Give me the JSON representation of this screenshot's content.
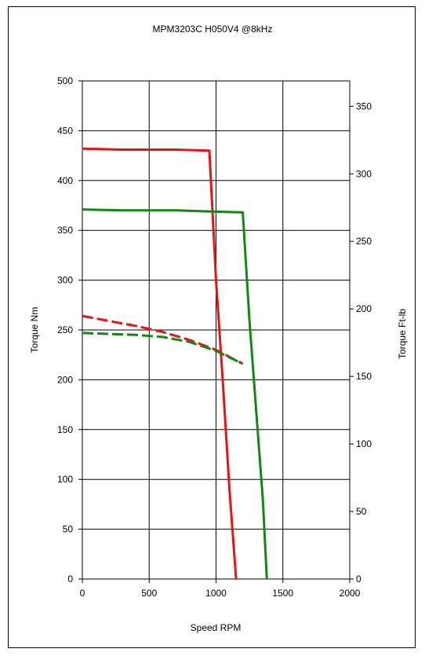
{
  "chart_data": {
    "type": "line",
    "title": "MPM3203C H050V4 @8kHz",
    "xlabel": "Speed RPM",
    "ylabel": "Torque Nm",
    "y2label": "Torque Ft-lb",
    "xlim": [
      0,
      2000
    ],
    "ylim": [
      0,
      500
    ],
    "y2lim": [
      0,
      368.8
    ],
    "x_ticks": [
      "0",
      "500",
      "1000",
      "1500",
      "2000"
    ],
    "y_ticks": [
      "0",
      "50",
      "100",
      "150",
      "200",
      "250",
      "300",
      "350",
      "400",
      "450",
      "500"
    ],
    "y2_ticks": [
      "0",
      "50",
      "100",
      "150",
      "200",
      "250",
      "300",
      "350"
    ],
    "grid": true,
    "series": [
      {
        "color": "#ee1111",
        "style": "solid",
        "x": [
          0,
          300,
          700,
          950,
          1000,
          1050,
          1100,
          1150
        ],
        "y": [
          432,
          431,
          431,
          430,
          300,
          200,
          90,
          0
        ]
      },
      {
        "color": "#118811",
        "style": "solid",
        "x": [
          0,
          300,
          700,
          1200,
          1250,
          1300,
          1350,
          1380
        ],
        "y": [
          371,
          370,
          370,
          368,
          260,
          170,
          80,
          0
        ]
      },
      {
        "color": "#ee1111",
        "style": "dashed",
        "x": [
          0,
          200,
          400,
          600,
          800,
          1000,
          1200
        ],
        "y": [
          264,
          259,
          254,
          248,
          240,
          230,
          216
        ]
      },
      {
        "color": "#118811",
        "style": "dashed",
        "x": [
          0,
          200,
          400,
          600,
          800,
          1000,
          1200
        ],
        "y": [
          247,
          246,
          245,
          243,
          238,
          229,
          216
        ]
      }
    ]
  }
}
